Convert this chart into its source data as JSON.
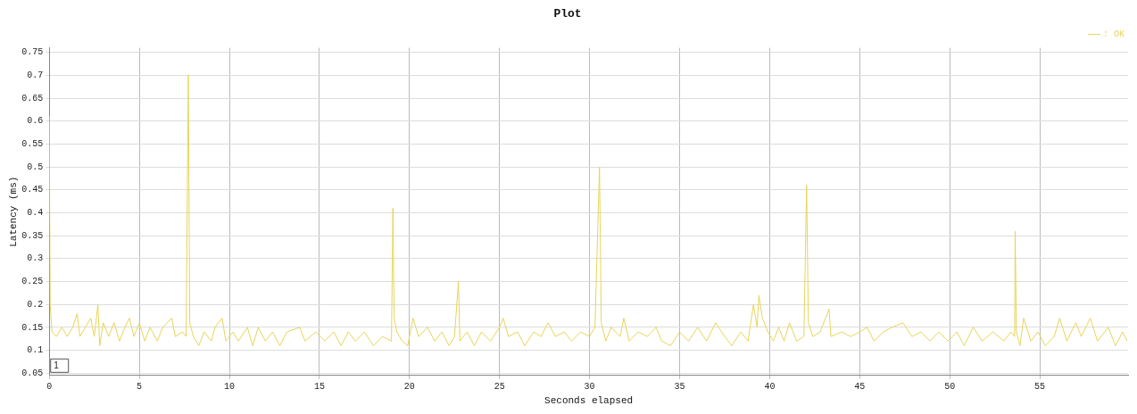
{
  "chart_data": {
    "type": "line",
    "title": "Plot",
    "xlabel": "Seconds elapsed",
    "ylabel": "Latency (ms)",
    "annotations": [
      "1"
    ],
    "xlim": [
      0,
      59.9
    ],
    "xticks": [
      0,
      5,
      10,
      15,
      20,
      25,
      30,
      35,
      40,
      45,
      50,
      55
    ],
    "ylim": [
      0.045,
      0.76
    ],
    "yticks": [
      0.05,
      0.1,
      0.15,
      0.2,
      0.25,
      0.3,
      0.35,
      0.4,
      0.45,
      0.5,
      0.55,
      0.6,
      0.65,
      0.7,
      0.75
    ],
    "grid": true,
    "legend": "top right",
    "marker": "none",
    "line_style": "solid",
    "series": [
      {
        "name": ": OK",
        "color": "#e6d55a",
        "x": [
          0,
          0.05,
          0.15,
          0.4,
          0.7,
          1.0,
          1.3,
          1.55,
          1.7,
          2.0,
          2.3,
          2.5,
          2.7,
          2.8,
          3.0,
          3.3,
          3.6,
          3.9,
          4.2,
          4.45,
          4.7,
          5.0,
          5.3,
          5.6,
          6.0,
          6.3,
          6.8,
          7.0,
          7.4,
          7.6,
          7.72,
          7.8,
          8.0,
          8.3,
          8.6,
          9.0,
          9.2,
          9.6,
          9.8,
          10.2,
          10.5,
          11.0,
          11.3,
          11.6,
          12.0,
          12.4,
          12.8,
          13.2,
          13.9,
          14.2,
          14.8,
          15.3,
          15.8,
          16.2,
          16.6,
          17.0,
          17.5,
          18.0,
          18.5,
          19.0,
          19.08,
          19.15,
          19.3,
          19.6,
          19.9,
          20.2,
          20.5,
          21.0,
          21.4,
          21.8,
          22.2,
          22.5,
          22.72,
          22.8,
          23.2,
          23.6,
          24.0,
          24.5,
          25.0,
          25.2,
          25.5,
          26.0,
          26.4,
          26.9,
          27.3,
          27.7,
          28.1,
          28.6,
          29.0,
          29.5,
          30.0,
          30.3,
          30.55,
          30.65,
          30.9,
          31.2,
          31.7,
          31.9,
          32.2,
          32.7,
          33.2,
          33.7,
          34.0,
          34.5,
          35.0,
          35.5,
          36.0,
          36.5,
          37.0,
          37.5,
          37.9,
          38.4,
          38.8,
          39.1,
          39.3,
          39.4,
          39.6,
          39.9,
          40.2,
          40.5,
          40.8,
          41.1,
          41.5,
          41.9,
          42.05,
          42.15,
          42.4,
          42.8,
          43.3,
          43.4,
          44.0,
          44.5,
          45.0,
          45.4,
          45.8,
          46.3,
          46.8,
          47.4,
          47.9,
          48.4,
          48.9,
          49.4,
          49.9,
          50.4,
          50.8,
          51.3,
          51.8,
          52.4,
          53.0,
          53.4,
          53.6,
          53.63,
          53.7,
          53.9,
          54.1,
          54.5,
          54.9,
          55.3,
          55.8,
          56.1,
          56.5,
          57.0,
          57.3,
          57.8,
          58.2,
          58.8,
          59.2,
          59.6,
          59.85
        ],
        "values": [
          0.61,
          0.2,
          0.14,
          0.13,
          0.15,
          0.13,
          0.15,
          0.18,
          0.13,
          0.15,
          0.17,
          0.13,
          0.2,
          0.11,
          0.16,
          0.13,
          0.16,
          0.12,
          0.15,
          0.17,
          0.13,
          0.16,
          0.12,
          0.15,
          0.12,
          0.15,
          0.17,
          0.13,
          0.14,
          0.13,
          0.7,
          0.16,
          0.13,
          0.11,
          0.14,
          0.12,
          0.15,
          0.17,
          0.12,
          0.14,
          0.12,
          0.15,
          0.11,
          0.15,
          0.12,
          0.14,
          0.11,
          0.14,
          0.15,
          0.12,
          0.14,
          0.12,
          0.14,
          0.11,
          0.14,
          0.12,
          0.14,
          0.11,
          0.13,
          0.12,
          0.41,
          0.17,
          0.14,
          0.12,
          0.11,
          0.17,
          0.13,
          0.15,
          0.12,
          0.14,
          0.11,
          0.13,
          0.25,
          0.12,
          0.14,
          0.11,
          0.14,
          0.12,
          0.15,
          0.17,
          0.13,
          0.14,
          0.11,
          0.14,
          0.13,
          0.16,
          0.13,
          0.14,
          0.12,
          0.14,
          0.13,
          0.15,
          0.5,
          0.16,
          0.12,
          0.15,
          0.13,
          0.17,
          0.12,
          0.14,
          0.13,
          0.15,
          0.12,
          0.11,
          0.14,
          0.12,
          0.15,
          0.12,
          0.16,
          0.13,
          0.11,
          0.14,
          0.12,
          0.2,
          0.15,
          0.22,
          0.17,
          0.14,
          0.12,
          0.15,
          0.12,
          0.16,
          0.12,
          0.13,
          0.46,
          0.16,
          0.13,
          0.14,
          0.19,
          0.13,
          0.14,
          0.13,
          0.14,
          0.15,
          0.12,
          0.14,
          0.15,
          0.16,
          0.13,
          0.14,
          0.12,
          0.14,
          0.12,
          0.14,
          0.11,
          0.15,
          0.12,
          0.14,
          0.12,
          0.14,
          0.13,
          0.36,
          0.14,
          0.11,
          0.17,
          0.12,
          0.14,
          0.11,
          0.13,
          0.17,
          0.12,
          0.16,
          0.13,
          0.17,
          0.12,
          0.15,
          0.11,
          0.14,
          0.12
        ]
      }
    ]
  }
}
